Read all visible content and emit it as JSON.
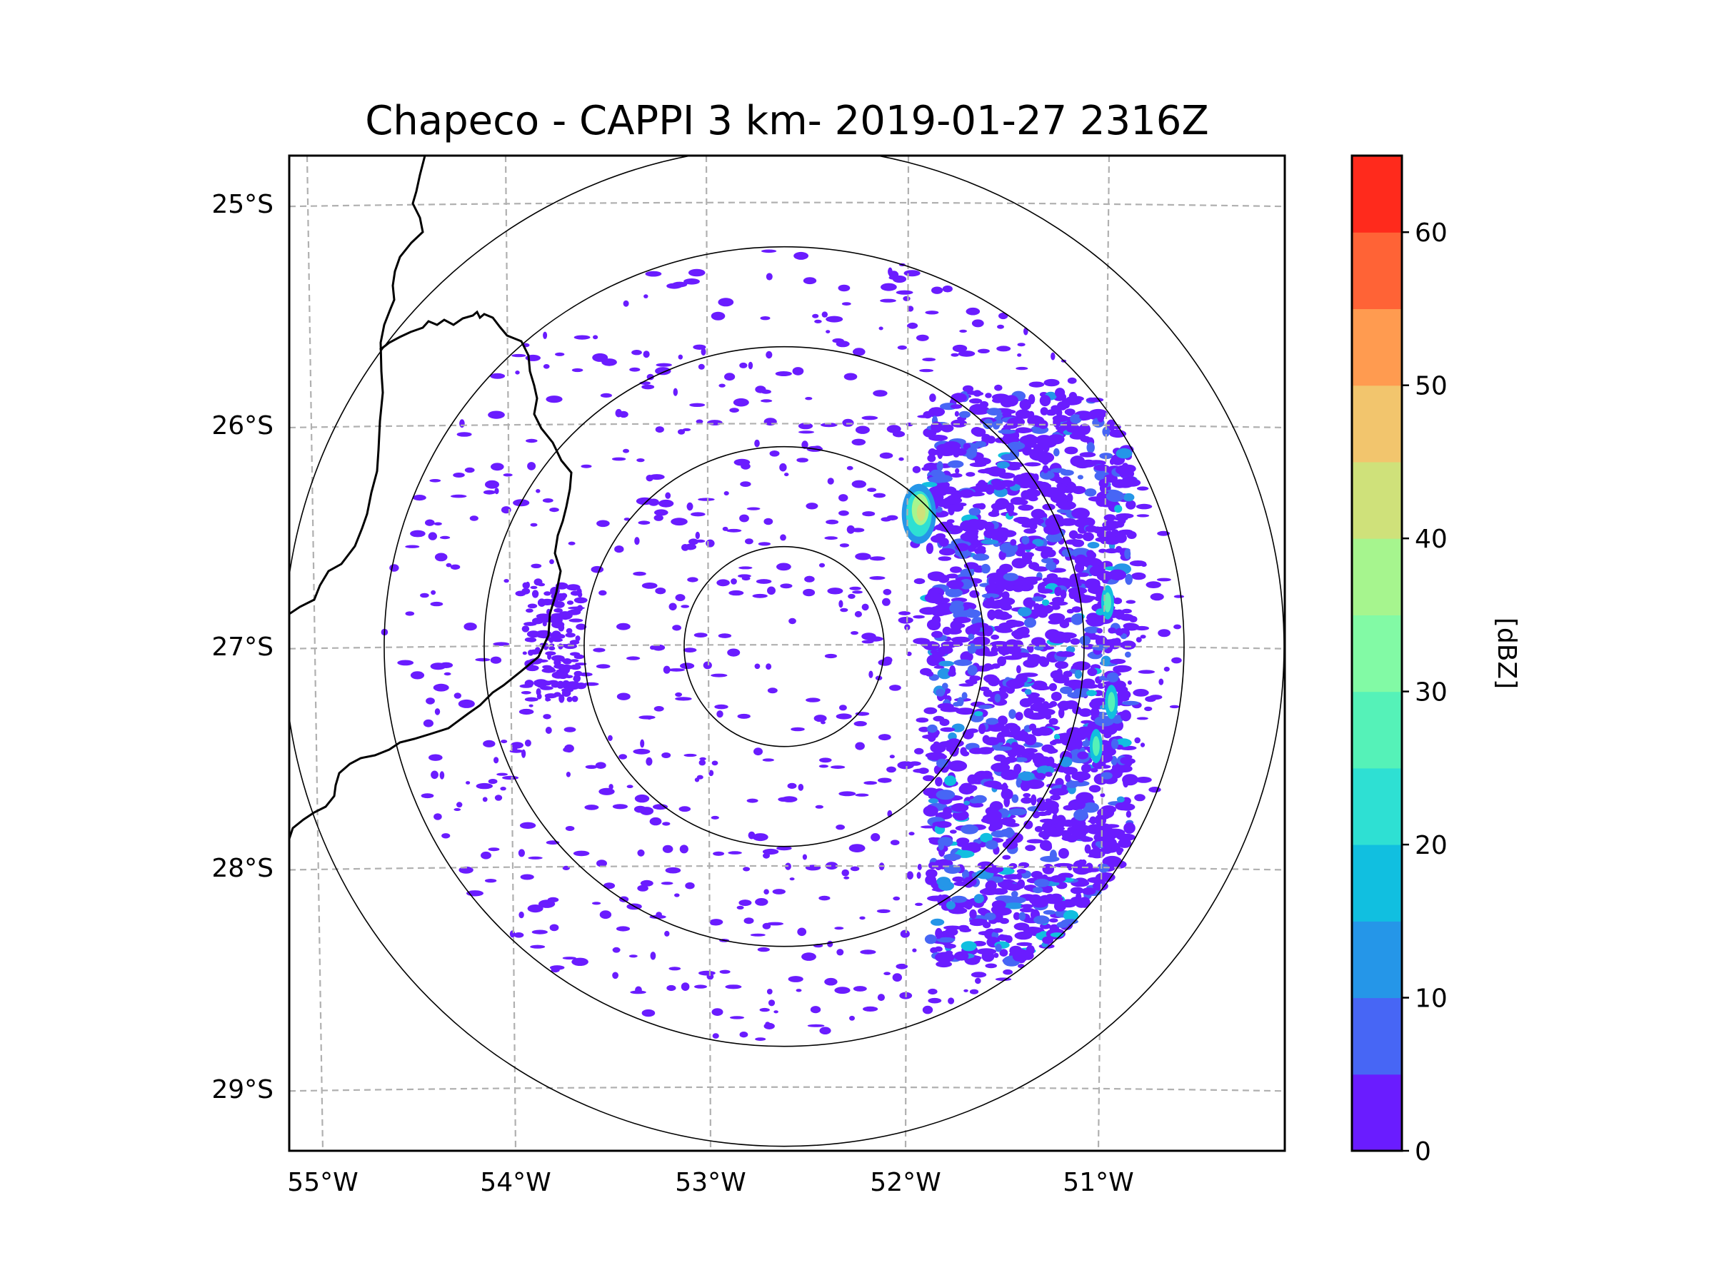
{
  "chart_data": {
    "type": "heatmap",
    "title": "Chapeco - CAPPI 3 km- 2019-01-27 2316Z",
    "xlabel": "",
    "ylabel": "",
    "lon_ticks": [
      "55°W",
      "54°W",
      "53°W",
      "52°W",
      "51°W"
    ],
    "lat_ticks": [
      "25°S",
      "26°S",
      "27°S",
      "28°S",
      "29°S"
    ],
    "grid": true,
    "range_rings_km": [
      50,
      100,
      150,
      200,
      250
    ],
    "radar_center": {
      "lat": -27.0,
      "lon": -52.6
    },
    "colorbar": {
      "label": "[dBZ]",
      "vmin": 0,
      "vmax": 65,
      "ticks": [
        0,
        10,
        20,
        30,
        40,
        50,
        60
      ],
      "levels": [
        0,
        5,
        10,
        15,
        20,
        25,
        30,
        35,
        40,
        45,
        50,
        55,
        60,
        65
      ],
      "colors": [
        "#6a1cff",
        "#4766f5",
        "#2596e8",
        "#11bfe0",
        "#2ee0d3",
        "#55f2b8",
        "#82faa5",
        "#a6f58e",
        "#cfe17a",
        "#f2c56d",
        "#ff9b50",
        "#ff6336",
        "#ff2a1c"
      ]
    },
    "echo_regions": [
      {
        "name": "broad stratiform echo east of radar",
        "lat_range": [
          -28.5,
          -25.8
        ],
        "lon_range": [
          -51.8,
          -50.8
        ],
        "dbz_range": [
          0,
          20
        ]
      },
      {
        "name": "convective cell",
        "lat": -26.4,
        "lon": -51.9,
        "dbz_max": 42
      },
      {
        "name": "eastern edge cells",
        "lat_range": [
          -27.5,
          -26.8
        ],
        "lon_range": [
          -51.1,
          -50.9
        ],
        "dbz_max": 30
      },
      {
        "name": "scattered weak echoes",
        "lat_range": [
          -28.6,
          -25.5
        ],
        "lon_range": [
          -54.4,
          -52.0
        ],
        "dbz_range": [
          0,
          5
        ]
      }
    ]
  }
}
